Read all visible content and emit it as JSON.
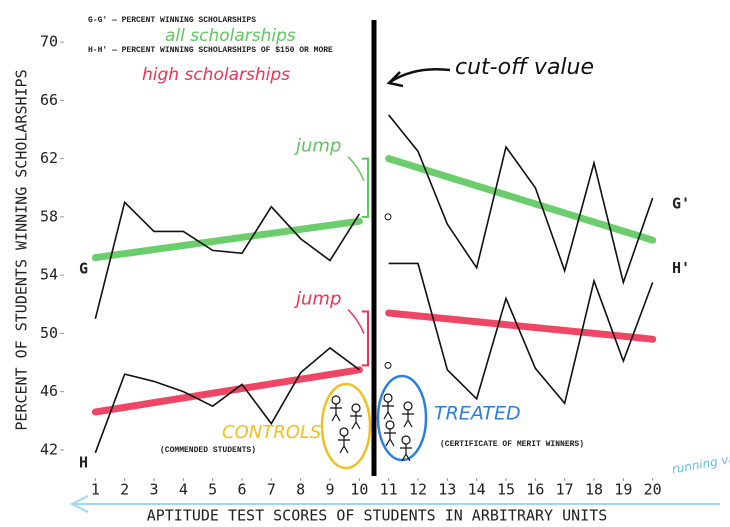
{
  "chart_data": {
    "type": "line",
    "legend_lines": [
      "G-G' — PERCENT WINNING SCHOLARSHIPS",
      "H-H' — PERCENT WINNING SCHOLARSHIPS OF $150 OR MORE"
    ],
    "notes": {
      "all": "all scholarships",
      "high": "high scholarships",
      "cutoff": "cut-off value",
      "controls": "CONTROLS",
      "treated": "TREATED",
      "commended": "(COMMENDED STUDENTS)",
      "merit": "(CERTIFICATE OF MERIT WINNERS)",
      "running": "running variable"
    },
    "y_label": "PERCENT OF STUDENTS WINNING SCHOLARSHIPS",
    "x_label": "APTITUDE TEST SCORES OF STUDENTS IN ARBITRARY UNITS",
    "x": [
      1,
      2,
      3,
      4,
      5,
      6,
      7,
      8,
      9,
      10,
      11,
      12,
      13,
      14,
      15,
      16,
      17,
      18,
      19,
      20
    ],
    "cutoff": 10.5,
    "series": [
      {
        "label_left": "G",
        "label_right": "G'",
        "color": "#111111",
        "values": [
          51,
          59,
          57,
          57,
          55.7,
          55.5,
          58.7,
          56.5,
          55,
          58.2,
          65,
          62.5,
          57.5,
          54.5,
          62.8,
          60,
          54.3,
          61.7,
          53.5,
          59.3
        ]
      },
      {
        "label_left": "H",
        "label_right": "H'",
        "color": "#111111",
        "values": [
          41.8,
          47.2,
          46.7,
          46,
          45,
          46.5,
          43.8,
          47.3,
          49,
          47.5,
          54.8,
          54.8,
          47.5,
          45.5,
          52.4,
          47.6,
          45.2,
          53.6,
          48.1,
          53.5
        ]
      }
    ],
    "fits": [
      {
        "color": "#5cc85c",
        "x": [
          1,
          10
        ],
        "values": [
          55.2,
          57.7
        ]
      },
      {
        "color": "#5cc85c",
        "x": [
          11,
          20
        ],
        "values": [
          62,
          56.4
        ]
      },
      {
        "color": "#ee3355",
        "x": [
          1,
          10
        ],
        "values": [
          44.6,
          47.5
        ]
      },
      {
        "color": "#ee3355",
        "x": [
          11,
          20
        ],
        "values": [
          51.4,
          49.6
        ]
      }
    ],
    "jumps": [
      {
        "label": "jump",
        "color": "#5cc85c",
        "values": [
          58,
          62
        ]
      },
      {
        "label": "jump",
        "color": "#ee3355",
        "values": [
          47.8,
          51.5
        ]
      }
    ],
    "xlim": [
      0,
      21
    ],
    "xticks": [
      1,
      2,
      3,
      4,
      5,
      6,
      7,
      8,
      9,
      10,
      11,
      12,
      13,
      14,
      15,
      16,
      17,
      18,
      19,
      20
    ],
    "ylim": [
      40,
      72
    ],
    "yticks": [
      42,
      46,
      50,
      54,
      58,
      62,
      66,
      70
    ]
  }
}
